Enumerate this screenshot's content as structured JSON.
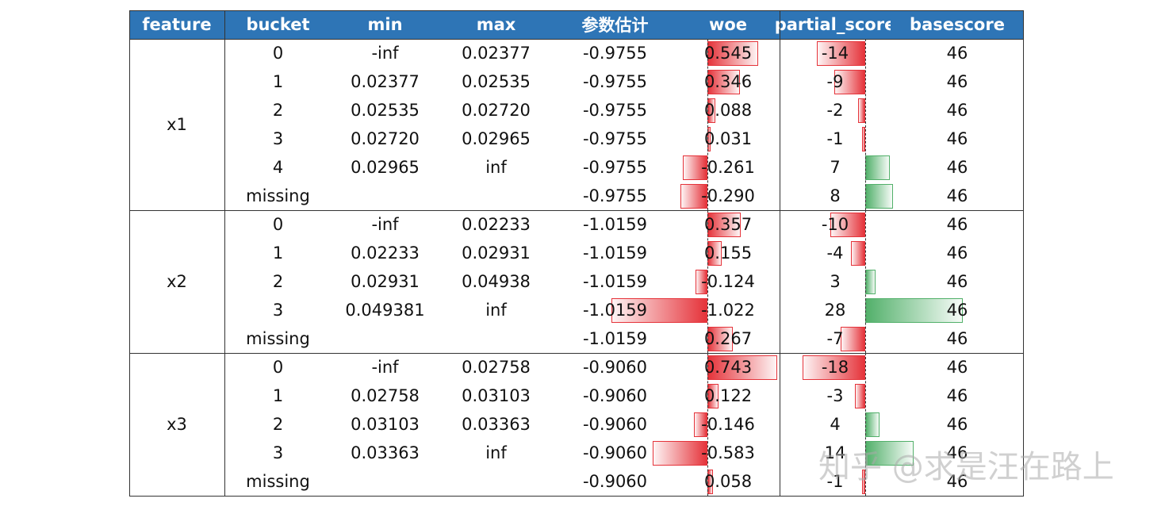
{
  "headers": [
    "feature",
    "bucket",
    "min",
    "max",
    "参数估计",
    "woe",
    "partial_score",
    "basescore"
  ],
  "groups": [
    {
      "feature": "x1",
      "rows": [
        {
          "bucket": "0",
          "min": "-inf",
          "max": "0.02377",
          "coef": "-0.9755",
          "woe": "0.545",
          "partial_score": "-14",
          "basescore": "46"
        },
        {
          "bucket": "1",
          "min": "0.02377",
          "max": "0.02535",
          "coef": "-0.9755",
          "woe": "0.346",
          "partial_score": "-9",
          "basescore": "46"
        },
        {
          "bucket": "2",
          "min": "0.02535",
          "max": "0.02720",
          "coef": "-0.9755",
          "woe": "0.088",
          "partial_score": "-2",
          "basescore": "46"
        },
        {
          "bucket": "3",
          "min": "0.02720",
          "max": "0.02965",
          "coef": "-0.9755",
          "woe": "0.031",
          "partial_score": "-1",
          "basescore": "46"
        },
        {
          "bucket": "4",
          "min": "0.02965",
          "max": "inf",
          "coef": "-0.9755",
          "woe": "-0.261",
          "partial_score": "7",
          "basescore": "46"
        },
        {
          "bucket": "missing",
          "min": "",
          "max": "",
          "coef": "-0.9755",
          "woe": "-0.290",
          "partial_score": "8",
          "basescore": "46"
        }
      ]
    },
    {
      "feature": "x2",
      "rows": [
        {
          "bucket": "0",
          "min": "-inf",
          "max": "0.02233",
          "coef": "-1.0159",
          "woe": "0.357",
          "partial_score": "-10",
          "basescore": "46"
        },
        {
          "bucket": "1",
          "min": "0.02233",
          "max": "0.02931",
          "coef": "-1.0159",
          "woe": "0.155",
          "partial_score": "-4",
          "basescore": "46"
        },
        {
          "bucket": "2",
          "min": "0.02931",
          "max": "0.04938",
          "coef": "-1.0159",
          "woe": "-0.124",
          "partial_score": "3",
          "basescore": "46"
        },
        {
          "bucket": "3",
          "min": "0.049381",
          "max": "inf",
          "coef": "-1.0159",
          "woe": "-1.022",
          "partial_score": "28",
          "basescore": "46"
        },
        {
          "bucket": "missing",
          "min": "",
          "max": "",
          "coef": "-1.0159",
          "woe": "0.267",
          "partial_score": "-7",
          "basescore": "46"
        }
      ]
    },
    {
      "feature": "x3",
      "rows": [
        {
          "bucket": "0",
          "min": "-inf",
          "max": "0.02758",
          "coef": "-0.9060",
          "woe": "0.743",
          "partial_score": "-18",
          "basescore": "46"
        },
        {
          "bucket": "1",
          "min": "0.02758",
          "max": "0.03103",
          "coef": "-0.9060",
          "woe": "0.122",
          "partial_score": "-3",
          "basescore": "46"
        },
        {
          "bucket": "2",
          "min": "0.03103",
          "max": "0.03363",
          "coef": "-0.9060",
          "woe": "-0.146",
          "partial_score": "4",
          "basescore": "46"
        },
        {
          "bucket": "3",
          "min": "0.03363",
          "max": "inf",
          "coef": "-0.9060",
          "woe": "-0.583",
          "partial_score": "14",
          "basescore": "46"
        },
        {
          "bucket": "missing",
          "min": "",
          "max": "",
          "coef": "-0.9060",
          "woe": "0.058",
          "partial_score": "-1",
          "basescore": "46"
        }
      ]
    }
  ],
  "colors": {
    "header_bg": "#2e75b6",
    "header_text": "#ffffff",
    "bar_negative": "#e5333a",
    "bar_positive": "#52b06a"
  },
  "watermark": "知乎 @求是汪在路上"
}
